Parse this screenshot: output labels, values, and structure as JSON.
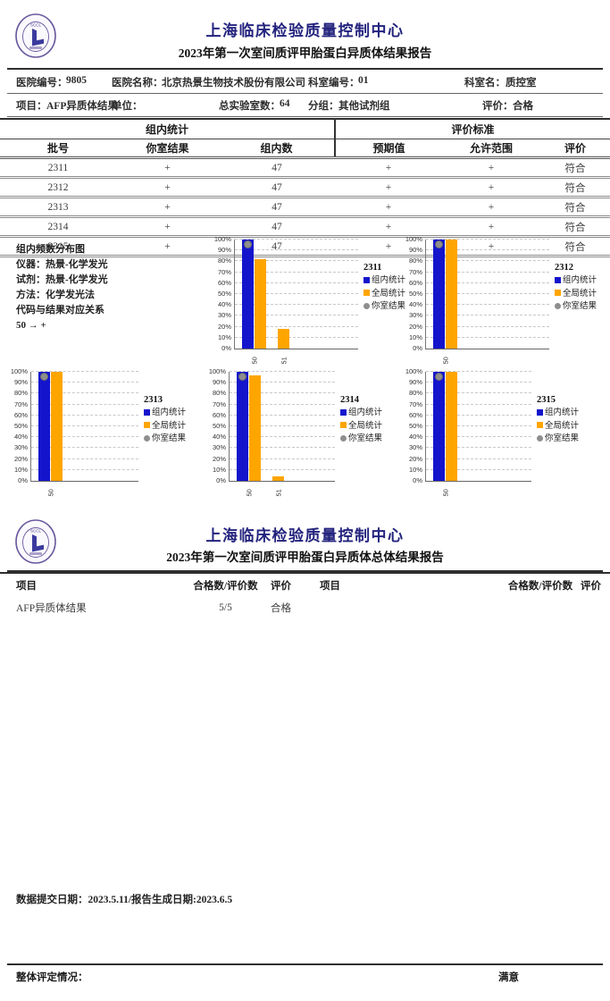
{
  "colors": {
    "title_navy": "#23237E",
    "bar_blue": "#1414CC",
    "bar_orange": "#FFA500",
    "dot_gray": "#8E8E8E",
    "seal_purple": "#6A5A9E"
  },
  "report1": {
    "org_name": "上海临床检验质量控制中心",
    "report_title": "2023年第一次室间质评甲胎蛋白异质体结果报告",
    "seal_text": "SCCL",
    "info": {
      "hospital_no_label": "医院编号：",
      "hospital_no_value": "9805",
      "hospital_name_label": "医院名称：",
      "hospital_name_value": "北京热景生物技术股份有限公司",
      "dept_no_label": "科室编号：",
      "dept_no_value": "01",
      "dept_name_label": "科室名：",
      "dept_name_value": "质控室",
      "item_label": "项目：",
      "item_value": "AFP异质体结果",
      "unit_label": "单位：",
      "unit_value": "",
      "total_labs_label": "总实验室数：",
      "total_labs_value": "64",
      "group_label": "分组：",
      "group_value": "其他试剂组",
      "eval_label": "评价：",
      "eval_value": "合格"
    },
    "table": {
      "group_headers": [
        "组内统计",
        "评价标准"
      ],
      "columns": [
        "批号",
        "你室结果",
        "组内数",
        "预期值",
        "允许范围",
        "评价"
      ],
      "rows": [
        [
          "2311",
          "+",
          "47",
          "+",
          "+",
          "符合"
        ],
        [
          "2312",
          "+",
          "47",
          "+",
          "+",
          "符合"
        ],
        [
          "2313",
          "+",
          "47",
          "+",
          "+",
          "符合"
        ],
        [
          "2314",
          "+",
          "47",
          "+",
          "+",
          "符合"
        ],
        [
          "2315",
          "+",
          "47",
          "+",
          "+",
          "符合"
        ]
      ]
    },
    "notes": "组内频数分布图\n仪器：热景-化学发光\n试剂：热景-化学发光\n方法：化学发光法\n代码与结果对应关系\n50 → +"
  },
  "chart_data": [
    {
      "type": "bar",
      "title": "2311",
      "categories": [
        "50",
        "51"
      ],
      "ylim": [
        0,
        100
      ],
      "ytick_step": 10,
      "ytick_format": "percent",
      "grid": true,
      "legend_position": "right",
      "series": [
        {
          "name": "组内统计",
          "color": "blue",
          "values": [
            100,
            null
          ]
        },
        {
          "name": "全局统计",
          "color": "orange",
          "values": [
            82,
            18
          ]
        },
        {
          "name": "你室结果",
          "color": "gray",
          "marker": "point",
          "values": [
            96,
            null
          ]
        }
      ]
    },
    {
      "type": "bar",
      "title": "2312",
      "categories": [
        "50"
      ],
      "ylim": [
        0,
        100
      ],
      "ytick_step": 10,
      "ytick_format": "percent",
      "grid": true,
      "legend_position": "right",
      "series": [
        {
          "name": "组内统计",
          "color": "blue",
          "values": [
            100
          ]
        },
        {
          "name": "全局统计",
          "color": "orange",
          "values": [
            100
          ]
        },
        {
          "name": "你室结果",
          "color": "gray",
          "marker": "point",
          "values": [
            96
          ]
        }
      ]
    },
    {
      "type": "bar",
      "title": "2313",
      "categories": [
        "50"
      ],
      "ylim": [
        0,
        100
      ],
      "ytick_step": 10,
      "ytick_format": "percent",
      "grid": true,
      "legend_position": "right",
      "series": [
        {
          "name": "组内统计",
          "color": "blue",
          "values": [
            100
          ]
        },
        {
          "name": "全局统计",
          "color": "orange",
          "values": [
            100
          ]
        },
        {
          "name": "你室结果",
          "color": "gray",
          "marker": "point",
          "values": [
            96
          ]
        }
      ]
    },
    {
      "type": "bar",
      "title": "2314",
      "categories": [
        "50",
        "51"
      ],
      "ylim": [
        0,
        100
      ],
      "ytick_step": 10,
      "ytick_format": "percent",
      "grid": true,
      "legend_position": "right",
      "series": [
        {
          "name": "组内统计",
          "color": "blue",
          "values": [
            100,
            null
          ]
        },
        {
          "name": "全局统计",
          "color": "orange",
          "values": [
            97,
            4
          ]
        },
        {
          "name": "你室结果",
          "color": "gray",
          "marker": "point",
          "values": [
            96,
            null
          ]
        }
      ]
    },
    {
      "type": "bar",
      "title": "2315",
      "categories": [
        "50"
      ],
      "ylim": [
        0,
        100
      ],
      "ytick_step": 10,
      "ytick_format": "percent",
      "grid": true,
      "legend_position": "right",
      "series": [
        {
          "name": "组内统计",
          "color": "blue",
          "values": [
            100
          ]
        },
        {
          "name": "全局统计",
          "color": "orange",
          "values": [
            100
          ]
        },
        {
          "name": "你室结果",
          "color": "gray",
          "marker": "point",
          "values": [
            96
          ]
        }
      ]
    }
  ],
  "report2": {
    "org_name": "上海临床检验质量控制中心",
    "report_title": "2023年第一次室间质评甲胎蛋白异质体总体结果报告",
    "table": {
      "columns": [
        "项目",
        "合格数/评价数",
        "评价",
        "项目",
        "合格数/评价数",
        "评价"
      ],
      "rows": [
        [
          "AFP异质体结果",
          "5/5",
          "合格",
          "",
          "",
          ""
        ]
      ]
    }
  },
  "footer": {
    "dates_line": "数据提交日期：2023.5.11/报告生成日期:2023.6.5",
    "overall_label": "整体评定情况：",
    "overall_value": "满意"
  }
}
